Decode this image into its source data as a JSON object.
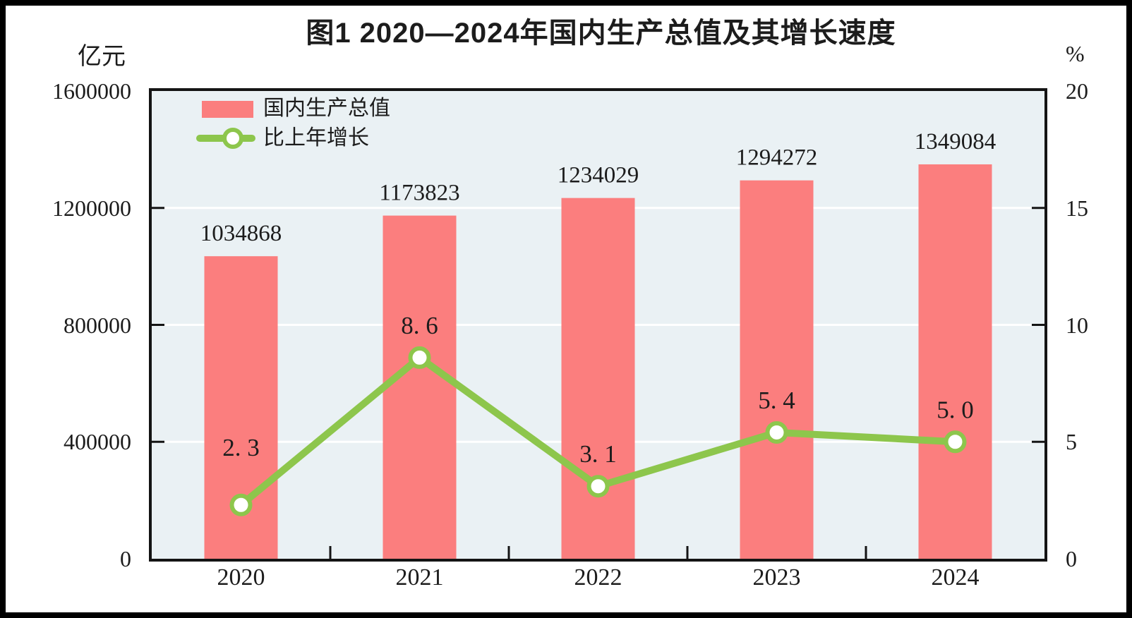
{
  "title": "图1  2020—2024年国内生产总值及其增长速度",
  "colors": {
    "bar": "#FB7E7E",
    "line": "#8DC64C",
    "marker_fill": "#FFFFFF",
    "plot_background": "#EAF1F4",
    "gridline": "#FFFFFF",
    "axis_border": "#141414",
    "text": "#1C1C1C"
  },
  "chart_data": {
    "type": "bar+line",
    "title": "图1  2020—2024年国内生产总值及其增长速度",
    "categories": [
      "2020",
      "2021",
      "2022",
      "2023",
      "2024"
    ],
    "left_axis": {
      "unit": "亿元",
      "min": 0,
      "max": 1600000,
      "ticks": [
        "1600000",
        "1200000",
        "800000",
        "400000",
        "0"
      ]
    },
    "right_axis": {
      "unit": "%",
      "min": 0,
      "max": 20,
      "ticks": [
        "20",
        "15",
        "10",
        "5",
        "0"
      ]
    },
    "grid": true,
    "gridlines_at_right_axis": [
      15,
      10,
      5
    ],
    "legend_position": "inside-top-left",
    "plot_background": "#EAF1F4",
    "series": [
      {
        "name": "国内生产总值",
        "type": "bar",
        "axis": "left",
        "color": "#FB7E7E",
        "values": [
          1034868,
          1173823,
          1234029,
          1294272,
          1349084
        ],
        "labels": [
          "1034868",
          "1173823",
          "1234029",
          "1294272",
          "1349084"
        ]
      },
      {
        "name": "比上年增长",
        "type": "line",
        "axis": "right",
        "color": "#8DC64C",
        "marker": "circle-white-fill",
        "values": [
          2.3,
          8.6,
          3.1,
          5.4,
          5.0
        ],
        "labels": [
          "2. 3",
          "8. 6",
          "3. 1",
          "5. 4",
          "5. 0"
        ]
      }
    ]
  }
}
